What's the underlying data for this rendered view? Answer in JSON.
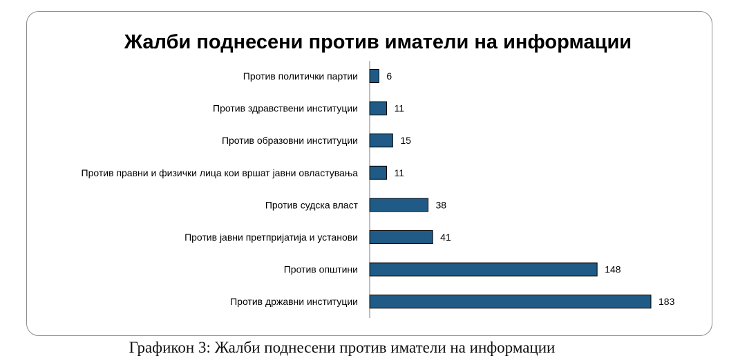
{
  "chart_data": {
    "type": "bar",
    "orientation": "horizontal",
    "title": "Жалби поднесени против иматели на информации",
    "categories": [
      "Против политички партии",
      "Против здравствени институции",
      "Против образовни институции",
      "Против правни и физички лица кои вршат јавни овластувања",
      "Против судска власт",
      "Против јавни претпријатија и установи",
      "Против општини",
      "Против државни институции"
    ],
    "values": [
      6,
      11,
      15,
      11,
      38,
      41,
      148,
      183
    ],
    "xlim": [
      0,
      183
    ],
    "grid": false,
    "legend": "none",
    "bar_color": "#1f5b86",
    "bar_edge_color": "#000000"
  },
  "caption": "Графикон 3: Жалби поднесени против иматели на информации"
}
